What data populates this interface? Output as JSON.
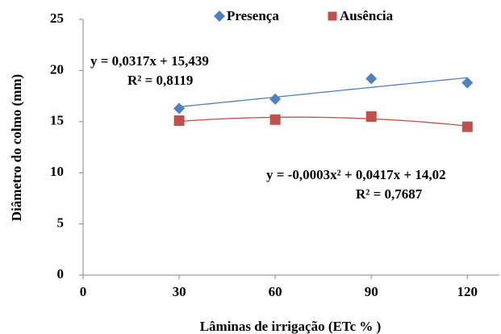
{
  "chart_data": {
    "type": "scatter",
    "x_label": "Lâminas de irrigação (ETc % )",
    "y_label": "Diâmetro do colmo (mm)",
    "x": [
      30,
      60,
      90,
      120
    ],
    "series": [
      {
        "name": "Presença",
        "color": "#4f81bd",
        "marker": "diamond",
        "trendline": "linear",
        "values": [
          16.3,
          17.2,
          19.2,
          18.8
        ]
      },
      {
        "name": "Ausência",
        "color": "#c0504d",
        "marker": "square",
        "trendline": "polynomial",
        "values": [
          15.1,
          15.2,
          15.5,
          14.5
        ]
      }
    ],
    "annotations": [
      "y = 0,0317x + 15,439",
      "R² = 0,8119",
      "y = -0,0003x² + 0,0417x + 14,02",
      "R² = 0,7687"
    ],
    "xlim": [
      0,
      130
    ],
    "xticks": [
      0,
      30,
      60,
      90,
      120
    ],
    "ylim": [
      0,
      25
    ],
    "yticks": [
      0,
      5,
      10,
      15,
      20,
      25
    ],
    "legend": "top",
    "grid": false
  }
}
